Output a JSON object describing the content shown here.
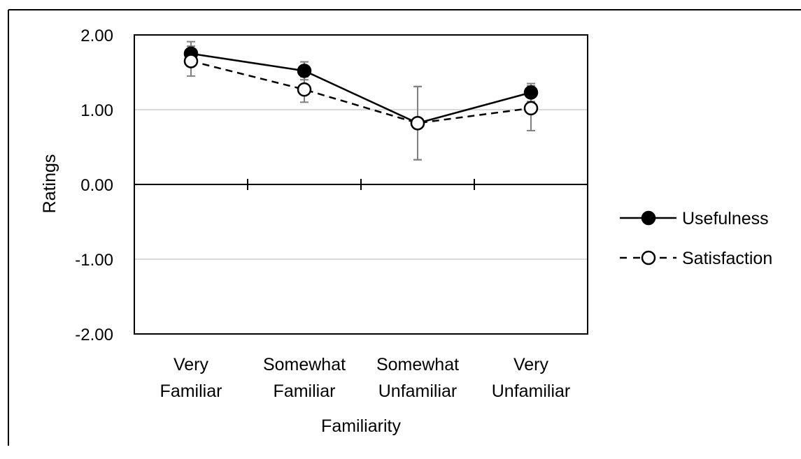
{
  "chart_data": {
    "type": "line",
    "xlabel": "Familiarity",
    "ylabel": "Ratings",
    "ylim": [
      -2,
      2
    ],
    "yticks": [
      "2.00",
      "1.00",
      "0.00",
      "-1.00",
      "-2.00"
    ],
    "grid": true,
    "legend_position": "right",
    "categories": [
      [
        "Very",
        "Familiar"
      ],
      [
        "Somewhat",
        "Familiar"
      ],
      [
        "Somewhat",
        "Unfamiliar"
      ],
      [
        "Very",
        "Unfamiliar"
      ]
    ],
    "series": [
      {
        "name": "Usefulness",
        "values": [
          1.75,
          1.52,
          0.82,
          1.23
        ],
        "error": [
          0.16,
          0.12,
          0.49,
          0.12
        ],
        "marker": "filled-circle",
        "line_style": "solid",
        "color": "#000000"
      },
      {
        "name": "Satisfaction",
        "values": [
          1.65,
          1.27,
          0.82,
          1.02
        ],
        "error": [
          0.2,
          0.17,
          0.49,
          0.3
        ],
        "marker": "open-circle",
        "line_style": "dashed",
        "color": "#000000"
      }
    ]
  },
  "colors": {
    "gridline": "#d9d9d9",
    "axis": "#000000",
    "error_bar": "#808080",
    "background": "#ffffff"
  }
}
